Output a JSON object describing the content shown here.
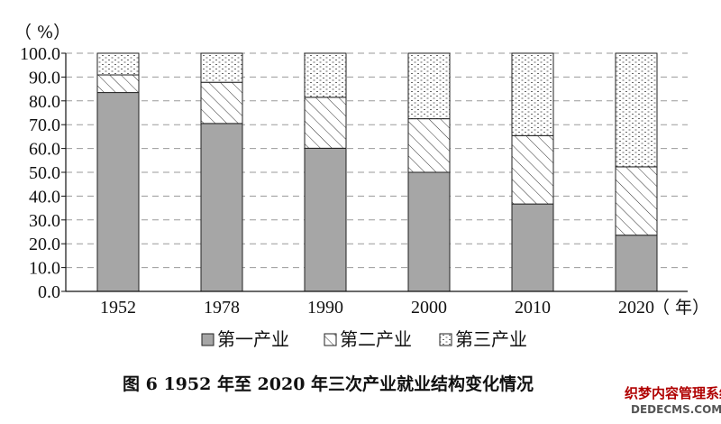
{
  "chart_data": {
    "type": "bar",
    "stacked": true,
    "categories": [
      "1952",
      "1978",
      "1990",
      "2000",
      "2010",
      "2020"
    ],
    "series": [
      {
        "name": "第一产业",
        "values": [
          83.5,
          70.5,
          60.1,
          50.0,
          36.7,
          23.6
        ]
      },
      {
        "name": "第二产业",
        "values": [
          7.4,
          17.3,
          21.4,
          22.5,
          28.7,
          28.7
        ]
      },
      {
        "name": "第三产业",
        "values": [
          9.1,
          12.2,
          18.5,
          27.5,
          34.6,
          47.7
        ]
      }
    ],
    "y_unit": "（ %）",
    "x_unit": "（ 年）",
    "yticks": [
      "0.0",
      "10.0",
      "20.0",
      "30.0",
      "40.0",
      "50.0",
      "60.0",
      "70.0",
      "80.0",
      "90.0",
      "100.0"
    ],
    "ylim": [
      0,
      100
    ],
    "grid": "horizontal dashed",
    "legend_position": "bottom",
    "title": "图 6 1952 年至 2020 年三次产业就业结构变化情况",
    "colors": {
      "primary": "#a6a6a6",
      "outline": "#222222",
      "grid": "#9a9a9a"
    },
    "patterns": [
      "solid-gray",
      "diagonal-hatch",
      "dotted"
    ]
  },
  "watermark": {
    "line1": "织梦内容管理系统",
    "line2": "DEDECMS.COM"
  }
}
